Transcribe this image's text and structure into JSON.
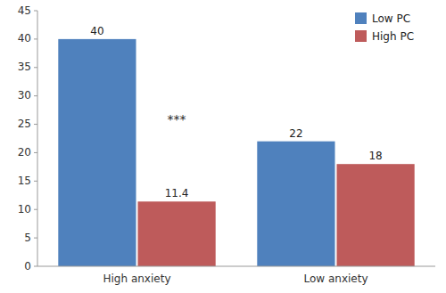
{
  "chart_data": {
    "type": "bar",
    "categories": [
      "High anxiety",
      "Low anxiety"
    ],
    "series": [
      {
        "name": "Low PC",
        "color": "#4f81bd",
        "values": [
          40,
          22
        ]
      },
      {
        "name": "High PC",
        "color": "#be5b5b",
        "values": [
          11.4,
          18
        ]
      }
    ],
    "ylim": [
      0,
      45
    ],
    "yticks": [
      0,
      5,
      10,
      15,
      20,
      25,
      30,
      35,
      40,
      45
    ],
    "data_labels": true,
    "legend": "upper-right",
    "grid": false,
    "annotations": [
      "***"
    ]
  }
}
